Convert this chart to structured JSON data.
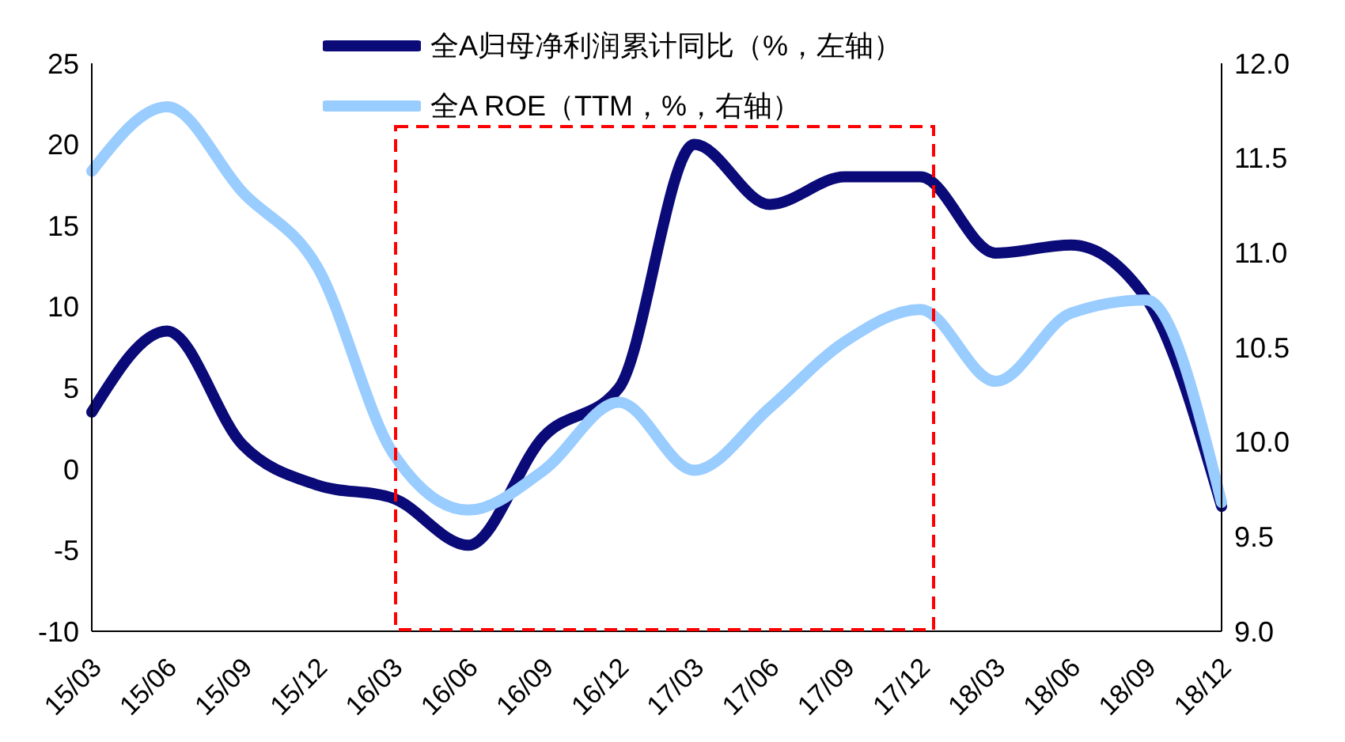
{
  "chart_data": {
    "type": "line",
    "categories": [
      "15/03",
      "15/06",
      "15/09",
      "15/12",
      "16/03",
      "16/06",
      "16/09",
      "16/12",
      "17/03",
      "17/06",
      "17/09",
      "17/12",
      "18/03",
      "18/06",
      "18/09",
      "18/12"
    ],
    "series": [
      {
        "name": "全A归母净利润累计同比（%，左轴）",
        "color": "#0a0a78",
        "values": [
          3.5,
          8.5,
          1.5,
          -1.0,
          -1.8,
          -4.7,
          2.0,
          5.0,
          20.0,
          16.3,
          18.0,
          18.0,
          13.3,
          13.8,
          10.5,
          -2.3
        ]
      },
      {
        "name": "全A ROE（TTM，%，右轴）",
        "color": "#99ccff",
        "axis": "y2",
        "values": [
          11.43,
          11.77,
          11.32,
          10.92,
          9.94,
          9.64,
          9.85,
          10.21,
          9.85,
          10.18,
          10.53,
          10.7,
          10.32,
          10.68,
          10.75,
          9.68
        ]
      }
    ],
    "ylim": [
      -10,
      25
    ],
    "yticks": [
      -10,
      -5,
      0,
      5,
      10,
      15,
      20,
      25
    ],
    "y2lim": [
      9.0,
      12.0
    ],
    "y2ticks": [
      {
        "value": 9,
        "label": "9.0"
      },
      {
        "value": 9.5,
        "label": "9.5"
      },
      {
        "value": 10,
        "label": "10.0"
      },
      {
        "value": 10.5,
        "label": "10.5"
      },
      {
        "value": 11,
        "label": "11.0"
      },
      {
        "value": 11.5,
        "label": "11.5"
      },
      {
        "value": 12,
        "label": "12.0"
      }
    ],
    "legend": "top",
    "marker": "none",
    "line_style": "solid"
  }
}
